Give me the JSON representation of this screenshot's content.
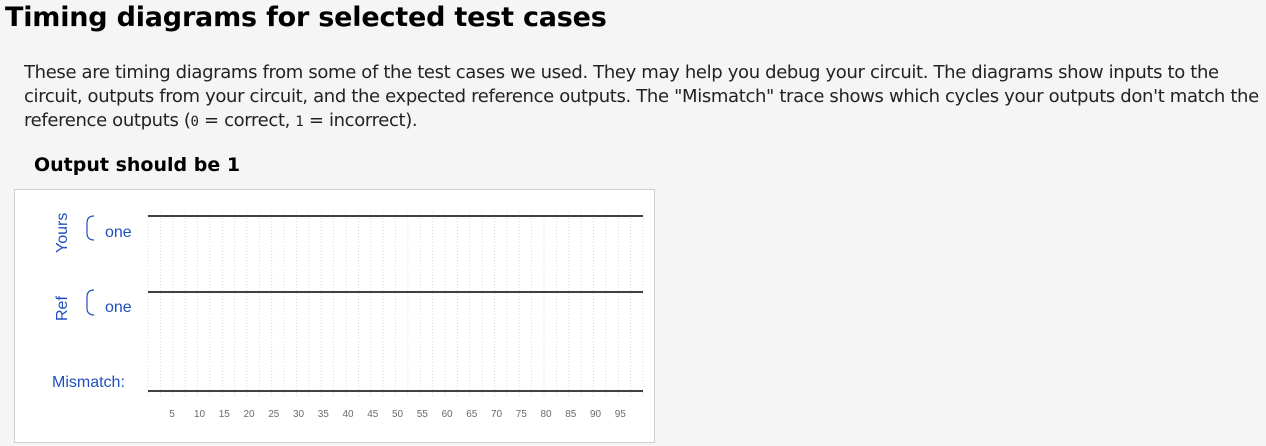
{
  "page": {
    "title": "Timing diagrams for selected test cases",
    "intro": {
      "part1": "These are timing diagrams from some of the test cases we used. They may help you debug your circuit. The diagrams show inputs to the circuit, outputs from your circuit, and the expected reference outputs. The \"Mismatch\" trace shows which cycles your outputs don't match the reference outputs (",
      "zero": "0",
      "part2": " = correct, ",
      "one": "1",
      "part3": " = incorrect)."
    }
  },
  "test_case": {
    "title": "Output should be 1",
    "groups": {
      "yours": "Yours",
      "ref": "Ref"
    },
    "signals": {
      "yours_one": "one",
      "ref_one": "one",
      "mismatch": "Mismatch:"
    },
    "time_ticks": [
      5,
      10,
      15,
      20,
      25,
      30,
      35,
      40,
      45,
      50,
      55,
      60,
      65,
      70,
      75,
      80,
      85,
      90,
      95
    ],
    "traces": {
      "yours_one": 1,
      "ref_one": 1,
      "mismatch": 0
    },
    "colors": {
      "label": "#1f4fbf",
      "trace": "#000000",
      "grid": "#cfcfcf",
      "tick_label": "#6b6b6b"
    }
  }
}
